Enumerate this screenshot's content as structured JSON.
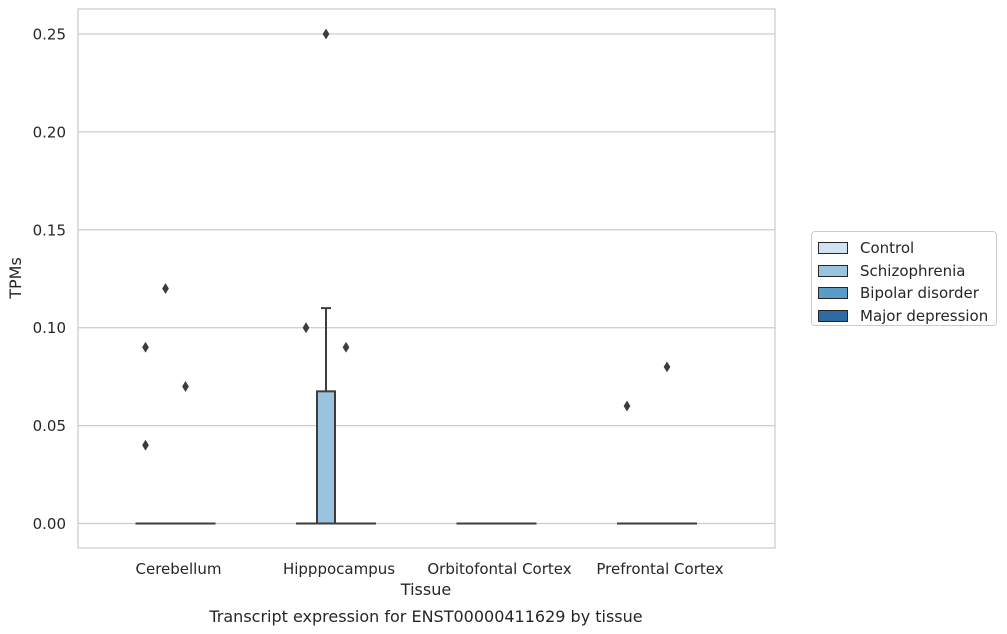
{
  "chart_data": {
    "type": "box",
    "title": "Transcript expression for ENST00000411629 by tissue",
    "xlabel": "Tissue",
    "ylabel": "TPMs",
    "ylim": [
      -0.012,
      0.2625
    ],
    "yticks": [
      0.0,
      0.05,
      0.1,
      0.15,
      0.2,
      0.25
    ],
    "ytick_labels": [
      "0.00",
      "0.05",
      "0.10",
      "0.15",
      "0.20",
      "0.25"
    ],
    "categories": [
      "Cerebellum",
      "Hipppocampus",
      "Orbitofontal Cortex",
      "Prefrontal Cortex"
    ],
    "grid": true,
    "legend_position": "right",
    "series": [
      {
        "name": "Control",
        "color": "#d1e2f2",
        "boxes": [
          {
            "q1": 0,
            "median": 0,
            "q3": 0,
            "whislo": 0,
            "whishi": 0,
            "fliers": [
              0.04,
              0.09
            ]
          },
          {
            "q1": 0,
            "median": 0,
            "q3": 0,
            "whislo": 0,
            "whishi": 0,
            "fliers": [
              0.1
            ]
          },
          {
            "q1": 0,
            "median": 0,
            "q3": 0,
            "whislo": 0,
            "whishi": 0,
            "fliers": []
          },
          {
            "q1": 0,
            "median": 0,
            "q3": 0,
            "whislo": 0,
            "whishi": 0,
            "fliers": [
              0.06
            ]
          }
        ]
      },
      {
        "name": "Schizophrenia",
        "color": "#9ac3dd",
        "boxes": [
          {
            "q1": 0,
            "median": 0,
            "q3": 0,
            "whislo": 0,
            "whishi": 0,
            "fliers": [
              0.12
            ]
          },
          {
            "q1": 0,
            "median": 0,
            "q3": 0.0675,
            "whislo": 0,
            "whishi": 0.11,
            "fliers": [
              0.25
            ]
          },
          {
            "q1": 0,
            "median": 0,
            "q3": 0,
            "whislo": 0,
            "whishi": 0,
            "fliers": []
          },
          {
            "q1": 0,
            "median": 0,
            "q3": 0,
            "whislo": 0,
            "whishi": 0,
            "fliers": []
          }
        ]
      },
      {
        "name": "Bipolar disorder",
        "color": "#5b9bc8",
        "boxes": [
          {
            "q1": 0,
            "median": 0,
            "q3": 0,
            "whislo": 0,
            "whishi": 0,
            "fliers": [
              0.07
            ]
          },
          {
            "q1": 0,
            "median": 0,
            "q3": 0,
            "whislo": 0,
            "whishi": 0,
            "fliers": [
              0.09
            ]
          },
          {
            "q1": 0,
            "median": 0,
            "q3": 0,
            "whislo": 0,
            "whishi": 0,
            "fliers": []
          },
          {
            "q1": 0,
            "median": 0,
            "q3": 0,
            "whislo": 0,
            "whishi": 0,
            "fliers": [
              0.08
            ]
          }
        ]
      },
      {
        "name": "Major depression",
        "color": "#2b6ba6",
        "boxes": [
          {
            "q1": 0,
            "median": 0,
            "q3": 0,
            "whislo": 0,
            "whishi": 0,
            "fliers": []
          },
          {
            "q1": 0,
            "median": 0,
            "q3": 0,
            "whislo": 0,
            "whishi": 0,
            "fliers": []
          },
          {
            "q1": 0,
            "median": 0,
            "q3": 0,
            "whislo": 0,
            "whishi": 0,
            "fliers": []
          },
          {
            "q1": 0,
            "median": 0,
            "q3": 0,
            "whislo": 0,
            "whishi": 0,
            "fliers": []
          }
        ]
      }
    ]
  }
}
